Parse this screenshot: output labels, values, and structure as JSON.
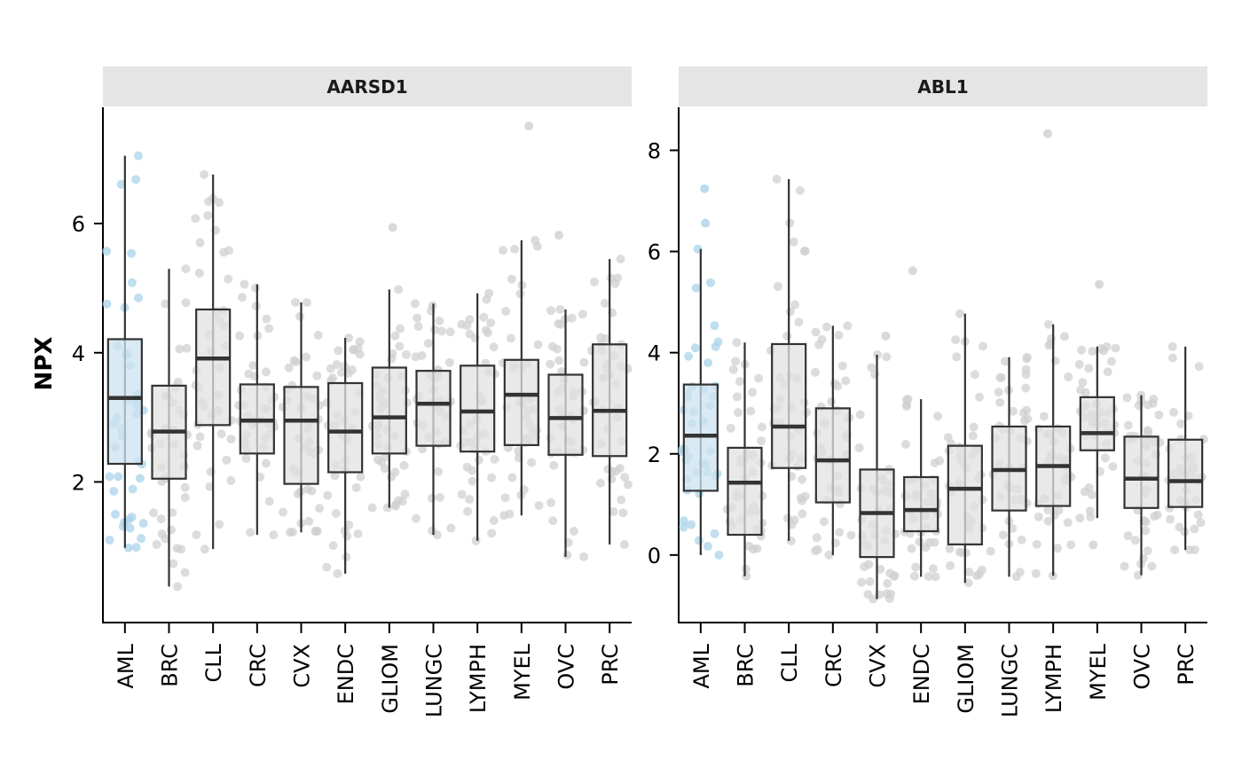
{
  "chart_data": {
    "type": "boxplot",
    "ylabel": "NPX",
    "xlabel": "",
    "highlight_category": "AML",
    "colors": {
      "highlight_fill": "#cde3f0",
      "highlight_point": "#a9d3ea",
      "default_fill": "#e2e2e2",
      "default_point": "#d0d0d0",
      "strip_fill": "#e5e5e5",
      "box_stroke": "#333333"
    },
    "categories": [
      "AML",
      "BRC",
      "CLL",
      "CRC",
      "CVX",
      "ENDC",
      "GLIOM",
      "LUNGC",
      "LYMPH",
      "MYEL",
      "OVC",
      "PRC"
    ],
    "panels": [
      {
        "title": "AARSD1",
        "ylim": [
          -0.15,
          7.8
        ],
        "yticks": [
          2,
          4,
          6
        ],
        "boxes": [
          {
            "q1": 2.28,
            "median": 3.3,
            "q3": 4.21,
            "wlow": 0.98,
            "whigh": 7.05,
            "outliers": []
          },
          {
            "q1": 2.05,
            "median": 2.78,
            "q3": 3.49,
            "wlow": 0.38,
            "whigh": 5.3,
            "outliers": []
          },
          {
            "q1": 2.88,
            "median": 3.91,
            "q3": 4.67,
            "wlow": 0.96,
            "whigh": 6.76,
            "outliers": []
          },
          {
            "q1": 2.44,
            "median": 2.95,
            "q3": 3.51,
            "wlow": 1.18,
            "whigh": 5.06,
            "outliers": []
          },
          {
            "q1": 1.97,
            "median": 2.95,
            "q3": 3.47,
            "wlow": 1.22,
            "whigh": 4.78,
            "outliers": []
          },
          {
            "q1": 2.15,
            "median": 2.78,
            "q3": 3.53,
            "wlow": 0.58,
            "whigh": 4.23,
            "outliers": []
          },
          {
            "q1": 2.44,
            "median": 3.0,
            "q3": 3.77,
            "wlow": 1.6,
            "whigh": 4.98,
            "outliers": [
              5.94
            ]
          },
          {
            "q1": 2.56,
            "median": 3.21,
            "q3": 3.72,
            "wlow": 1.18,
            "whigh": 4.76,
            "outliers": []
          },
          {
            "q1": 2.47,
            "median": 3.09,
            "q3": 3.8,
            "wlow": 1.09,
            "whigh": 4.92,
            "outliers": []
          },
          {
            "q1": 2.57,
            "median": 3.35,
            "q3": 3.89,
            "wlow": 1.48,
            "whigh": 5.74,
            "outliers": [
              7.51
            ]
          },
          {
            "q1": 2.42,
            "median": 2.99,
            "q3": 3.66,
            "wlow": 0.84,
            "whigh": 4.67,
            "outliers": [
              5.82
            ]
          },
          {
            "q1": 2.4,
            "median": 3.1,
            "q3": 4.13,
            "wlow": 1.03,
            "whigh": 5.45,
            "outliers": []
          }
        ]
      },
      {
        "title": "ABL1",
        "ylim": [
          -1.3,
          8.85
        ],
        "yticks": [
          0,
          2,
          4,
          6,
          8
        ],
        "boxes": [
          {
            "q1": 1.27,
            "median": 2.36,
            "q3": 3.37,
            "wlow": 0.0,
            "whigh": 6.05,
            "outliers": [
              6.56,
              7.24
            ]
          },
          {
            "q1": 0.4,
            "median": 1.43,
            "q3": 2.12,
            "wlow": -0.42,
            "whigh": 4.2,
            "outliers": []
          },
          {
            "q1": 1.72,
            "median": 2.54,
            "q3": 4.17,
            "wlow": 0.28,
            "whigh": 7.43,
            "outliers": []
          },
          {
            "q1": 1.04,
            "median": 1.87,
            "q3": 2.9,
            "wlow": 0.0,
            "whigh": 4.53,
            "outliers": []
          },
          {
            "q1": -0.04,
            "median": 0.83,
            "q3": 1.69,
            "wlow": -0.87,
            "whigh": 3.96,
            "outliers": [
              4.33
            ]
          },
          {
            "q1": 0.47,
            "median": 0.89,
            "q3": 1.54,
            "wlow": -0.43,
            "whigh": 3.08,
            "outliers": [
              5.62
            ]
          },
          {
            "q1": 0.21,
            "median": 1.31,
            "q3": 2.16,
            "wlow": -0.55,
            "whigh": 4.77,
            "outliers": []
          },
          {
            "q1": 0.88,
            "median": 1.68,
            "q3": 2.54,
            "wlow": -0.43,
            "whigh": 3.91,
            "outliers": []
          },
          {
            "q1": 0.97,
            "median": 1.76,
            "q3": 2.54,
            "wlow": -0.41,
            "whigh": 4.56,
            "outliers": [
              8.33
            ]
          },
          {
            "q1": 2.07,
            "median": 2.41,
            "q3": 3.12,
            "wlow": 0.73,
            "whigh": 4.12,
            "outliers": [
              5.35,
              0.2
            ]
          },
          {
            "q1": 0.93,
            "median": 1.51,
            "q3": 2.34,
            "wlow": -0.4,
            "whigh": 3.16,
            "outliers": []
          },
          {
            "q1": 0.95,
            "median": 1.46,
            "q3": 2.28,
            "wlow": 0.1,
            "whigh": 4.12,
            "outliers": []
          }
        ]
      }
    ]
  }
}
